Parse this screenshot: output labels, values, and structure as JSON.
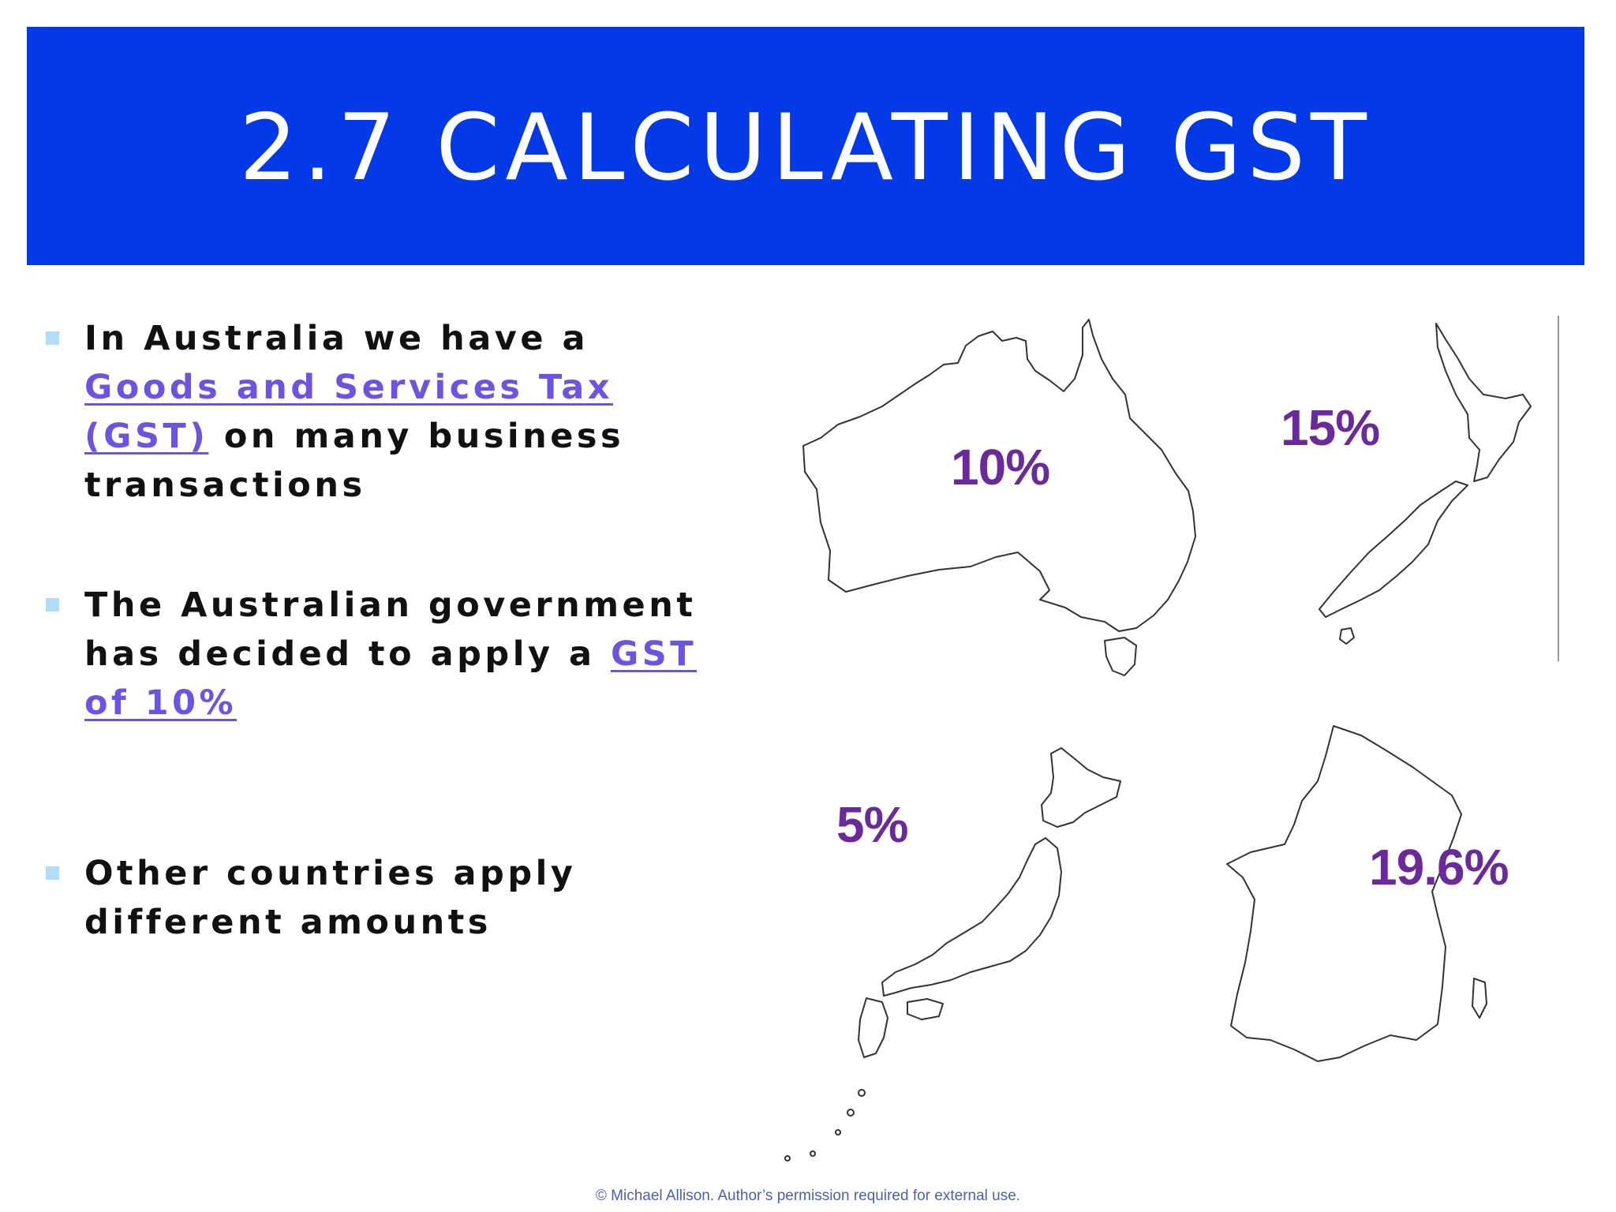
{
  "slide": {
    "title": "2.7 CALCULATING GST",
    "accent_color": "#0439e8",
    "link_color": "#6a55e3",
    "rate_color": "#6a2a9c"
  },
  "bullets": [
    {
      "before": "In Australia we have a ",
      "link": "Goods and Services Tax (GST)",
      "after": " on many business transactions"
    },
    {
      "before": "The Australian government has decided to apply a ",
      "link": "GST of 10%",
      "after": ""
    },
    {
      "before": "Other countries apply different amounts",
      "link": "",
      "after": ""
    }
  ],
  "maps": [
    {
      "country_icon": "australia-map",
      "rate": "10%"
    },
    {
      "country_icon": "new-zealand-map",
      "rate": "15%"
    },
    {
      "country_icon": "japan-map",
      "rate": "5%"
    },
    {
      "country_icon": "france-map",
      "rate": "19.6%"
    }
  ],
  "footer": "© Michael Allison. Author’s permission required for external use."
}
